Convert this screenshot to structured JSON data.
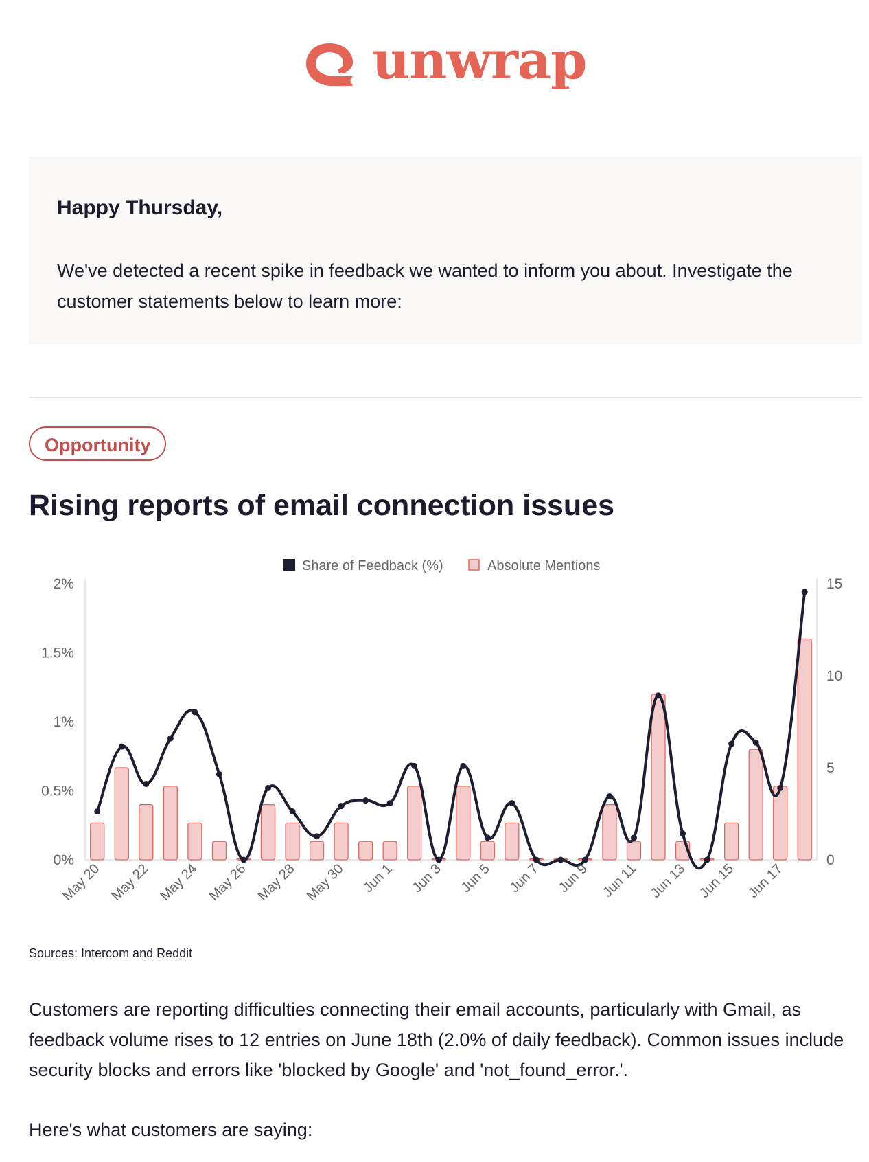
{
  "brand": {
    "name": "unwrap",
    "color": "#e46456",
    "logo_icon": "unwrap-ribbon-logo-icon"
  },
  "intro": {
    "greeting": "Happy Thursday,",
    "message": "We've detected a recent spike in feedback we wanted to inform you about. Investigate the customer statements below to learn more:"
  },
  "insight": {
    "badge": "Opportunity",
    "badge_color": "#c0504d",
    "title": "Rising reports of email connection issues",
    "sources": "Sources: Intercom and Reddit",
    "summary": "Customers are reporting difficulties connecting their email accounts, particularly with Gmail, as feedback volume rises to 12 entries on June 18th (2.0% of daily feedback). Common issues include security blocks and errors like 'blocked by Google' and 'not_found_error.'.",
    "quotes_intro": "Here's what customers are saying:"
  },
  "chart_data": {
    "type": "bar+line",
    "legend_position": "top",
    "grid": false,
    "categories": [
      "May 20",
      "May 21",
      "May 22",
      "May 23",
      "May 24",
      "May 25",
      "May 26",
      "May 27",
      "May 28",
      "May 29",
      "May 30",
      "May 31",
      "Jun 1",
      "Jun 2",
      "Jun 3",
      "Jun 4",
      "Jun 5",
      "Jun 6",
      "Jun 7",
      "Jun 8",
      "Jun 9",
      "Jun 10",
      "Jun 11",
      "Jun 12",
      "Jun 13",
      "Jun 14",
      "Jun 15",
      "Jun 16",
      "Jun 17",
      "Jun 18"
    ],
    "x_tick_labels": [
      "May 20",
      "May 22",
      "May 24",
      "May 26",
      "May 28",
      "May 30",
      "Jun 1",
      "Jun 3",
      "Jun 5",
      "Jun 7",
      "Jun 9",
      "Jun 11",
      "Jun 13",
      "Jun 15",
      "Jun 17"
    ],
    "series": [
      {
        "name": "Share of Feedback (%)",
        "type": "line",
        "axis": "left",
        "color": "#1e1e32",
        "values": [
          0.35,
          0.82,
          0.55,
          0.88,
          1.07,
          0.62,
          0,
          0.52,
          0.35,
          0.17,
          0.39,
          0.43,
          0.41,
          0.68,
          0,
          0.68,
          0.16,
          0.41,
          0,
          0,
          0,
          0.46,
          0.16,
          1.19,
          0.19,
          0,
          0.84,
          0.85,
          0.52,
          1.94
        ]
      },
      {
        "name": "Absolute Mentions",
        "type": "bar",
        "axis": "right",
        "color": "#f4cccc",
        "stroke": "#e8655a",
        "values": [
          2,
          5,
          3,
          4,
          2,
          1,
          0,
          3,
          2,
          1,
          2,
          1,
          1,
          4,
          0,
          4,
          1,
          2,
          0,
          0,
          0,
          3,
          1,
          9,
          1,
          0,
          2,
          6,
          4,
          12
        ]
      }
    ],
    "left_axis": {
      "range": [
        0,
        2
      ],
      "ticks": [
        "0%",
        "0.5%",
        "1%",
        "1.5%",
        "2%"
      ],
      "tick_values": [
        0,
        0.5,
        1,
        1.5,
        2
      ]
    },
    "right_axis": {
      "range": [
        0,
        15
      ],
      "ticks": [
        "0",
        "5",
        "10",
        "15"
      ],
      "tick_values": [
        0,
        5,
        10,
        15
      ]
    }
  }
}
